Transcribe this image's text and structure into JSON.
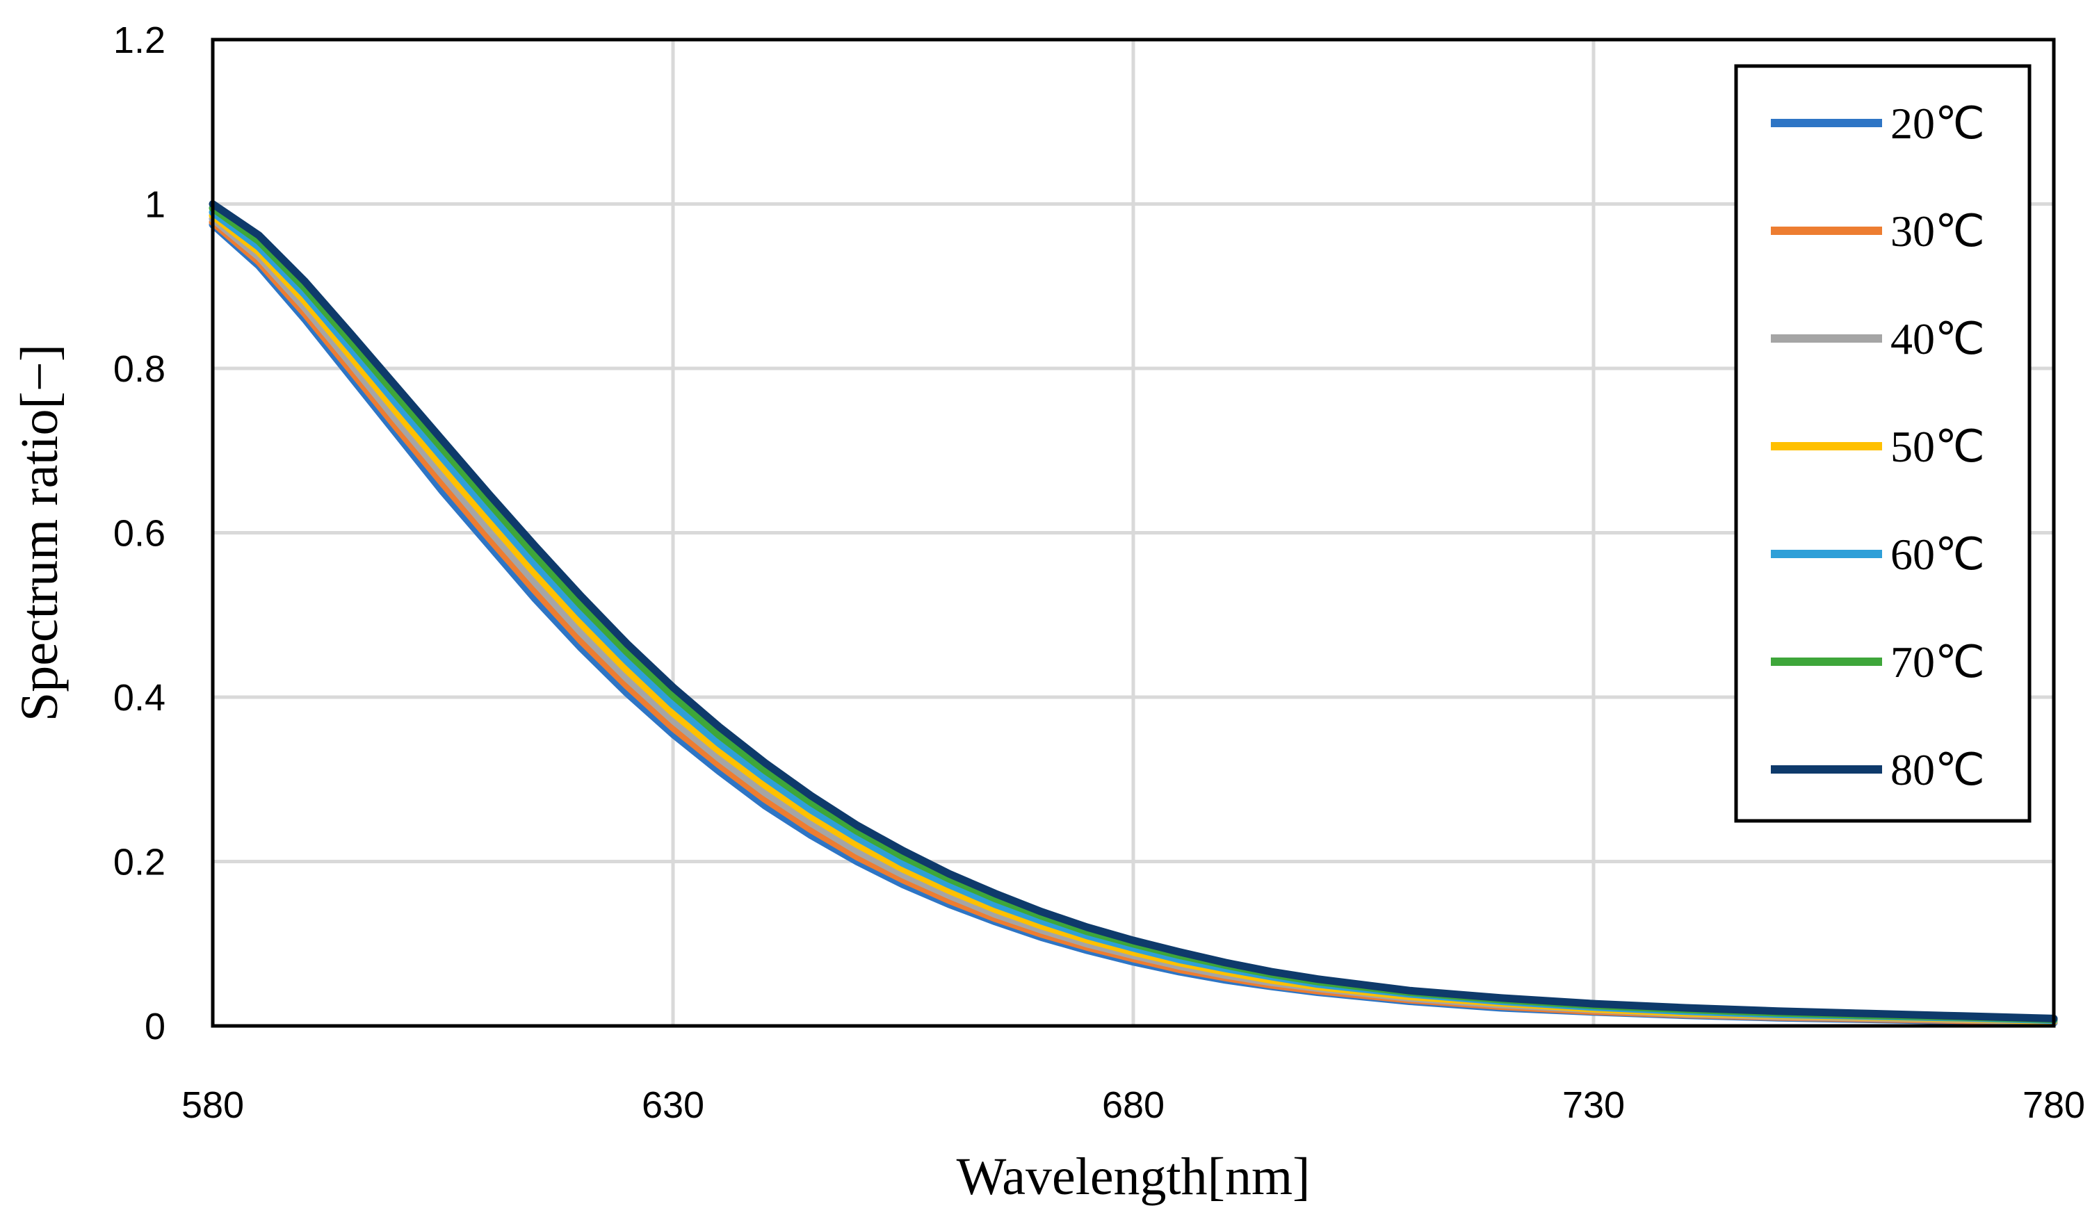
{
  "chart_data": {
    "type": "line",
    "title": "",
    "xlabel": "Wavelength[nm]",
    "ylabel": "Spectrum ratio[−]",
    "xlim": [
      580,
      780
    ],
    "ylim": [
      0,
      1.2
    ],
    "xticks": [
      580,
      630,
      680,
      730,
      780
    ],
    "xtick_labels": [
      "580",
      "630",
      "680",
      "730",
      "780"
    ],
    "yticks": [
      0,
      0.2,
      0.4,
      0.6,
      0.8,
      1,
      1.2
    ],
    "ytick_labels": [
      "0",
      "0.2",
      "0.4",
      "0.6",
      "0.8",
      "1",
      "1.2"
    ],
    "grid": true,
    "legend_position": "top-right",
    "x": [
      580,
      585,
      590,
      595,
      600,
      605,
      610,
      615,
      620,
      625,
      630,
      635,
      640,
      645,
      650,
      655,
      660,
      665,
      670,
      675,
      680,
      685,
      690,
      695,
      700,
      710,
      720,
      730,
      740,
      750,
      760,
      770,
      780
    ],
    "series": [
      {
        "name": "20℃",
        "color": "#2e75c5",
        "values": [
          0.975,
          0.925,
          0.86,
          0.79,
          0.72,
          0.65,
          0.585,
          0.52,
          0.46,
          0.405,
          0.355,
          0.31,
          0.268,
          0.232,
          0.2,
          0.172,
          0.148,
          0.127,
          0.108,
          0.092,
          0.078,
          0.066,
          0.056,
          0.048,
          0.041,
          0.03,
          0.022,
          0.017,
          0.013,
          0.01,
          0.008,
          0.006,
          0.004
        ]
      },
      {
        "name": "30℃",
        "color": "#ed7d31",
        "values": [
          0.978,
          0.93,
          0.867,
          0.798,
          0.728,
          0.66,
          0.594,
          0.53,
          0.469,
          0.414,
          0.363,
          0.318,
          0.276,
          0.239,
          0.206,
          0.178,
          0.153,
          0.131,
          0.112,
          0.096,
          0.082,
          0.069,
          0.059,
          0.05,
          0.043,
          0.032,
          0.024,
          0.018,
          0.014,
          0.011,
          0.009,
          0.007,
          0.005
        ]
      },
      {
        "name": "40℃",
        "color": "#a5a5a5",
        "values": [
          0.982,
          0.936,
          0.874,
          0.806,
          0.737,
          0.67,
          0.604,
          0.54,
          0.479,
          0.423,
          0.372,
          0.326,
          0.284,
          0.247,
          0.213,
          0.184,
          0.159,
          0.136,
          0.117,
          0.1,
          0.086,
          0.073,
          0.062,
          0.053,
          0.046,
          0.034,
          0.026,
          0.02,
          0.015,
          0.012,
          0.01,
          0.008,
          0.005
        ]
      },
      {
        "name": "50℃",
        "color": "#ffc000",
        "values": [
          0.986,
          0.942,
          0.882,
          0.815,
          0.747,
          0.68,
          0.615,
          0.551,
          0.49,
          0.433,
          0.381,
          0.335,
          0.293,
          0.255,
          0.221,
          0.191,
          0.165,
          0.142,
          0.122,
          0.105,
          0.09,
          0.077,
          0.066,
          0.056,
          0.048,
          0.036,
          0.028,
          0.021,
          0.016,
          0.013,
          0.011,
          0.009,
          0.006
        ]
      },
      {
        "name": "60℃",
        "color": "#2e9fd8",
        "values": [
          0.99,
          0.948,
          0.89,
          0.824,
          0.757,
          0.691,
          0.626,
          0.562,
          0.501,
          0.444,
          0.391,
          0.344,
          0.302,
          0.263,
          0.229,
          0.198,
          0.172,
          0.148,
          0.128,
          0.11,
          0.095,
          0.081,
          0.07,
          0.06,
          0.051,
          0.039,
          0.03,
          0.023,
          0.018,
          0.014,
          0.012,
          0.01,
          0.007
        ]
      },
      {
        "name": "70℃",
        "color": "#3ea63a",
        "values": [
          0.995,
          0.955,
          0.898,
          0.833,
          0.767,
          0.702,
          0.637,
          0.573,
          0.512,
          0.455,
          0.402,
          0.354,
          0.311,
          0.272,
          0.237,
          0.206,
          0.179,
          0.155,
          0.134,
          0.115,
          0.1,
          0.086,
          0.074,
          0.063,
          0.054,
          0.041,
          0.032,
          0.025,
          0.02,
          0.016,
          0.013,
          0.011,
          0.008
        ]
      },
      {
        "name": "80℃",
        "color": "#0e3a6b",
        "values": [
          1.0,
          0.962,
          0.906,
          0.842,
          0.777,
          0.712,
          0.647,
          0.584,
          0.523,
          0.465,
          0.412,
          0.364,
          0.32,
          0.28,
          0.244,
          0.213,
          0.185,
          0.161,
          0.139,
          0.12,
          0.104,
          0.09,
          0.077,
          0.066,
          0.057,
          0.043,
          0.034,
          0.027,
          0.022,
          0.018,
          0.015,
          0.012,
          0.009
        ]
      }
    ]
  }
}
